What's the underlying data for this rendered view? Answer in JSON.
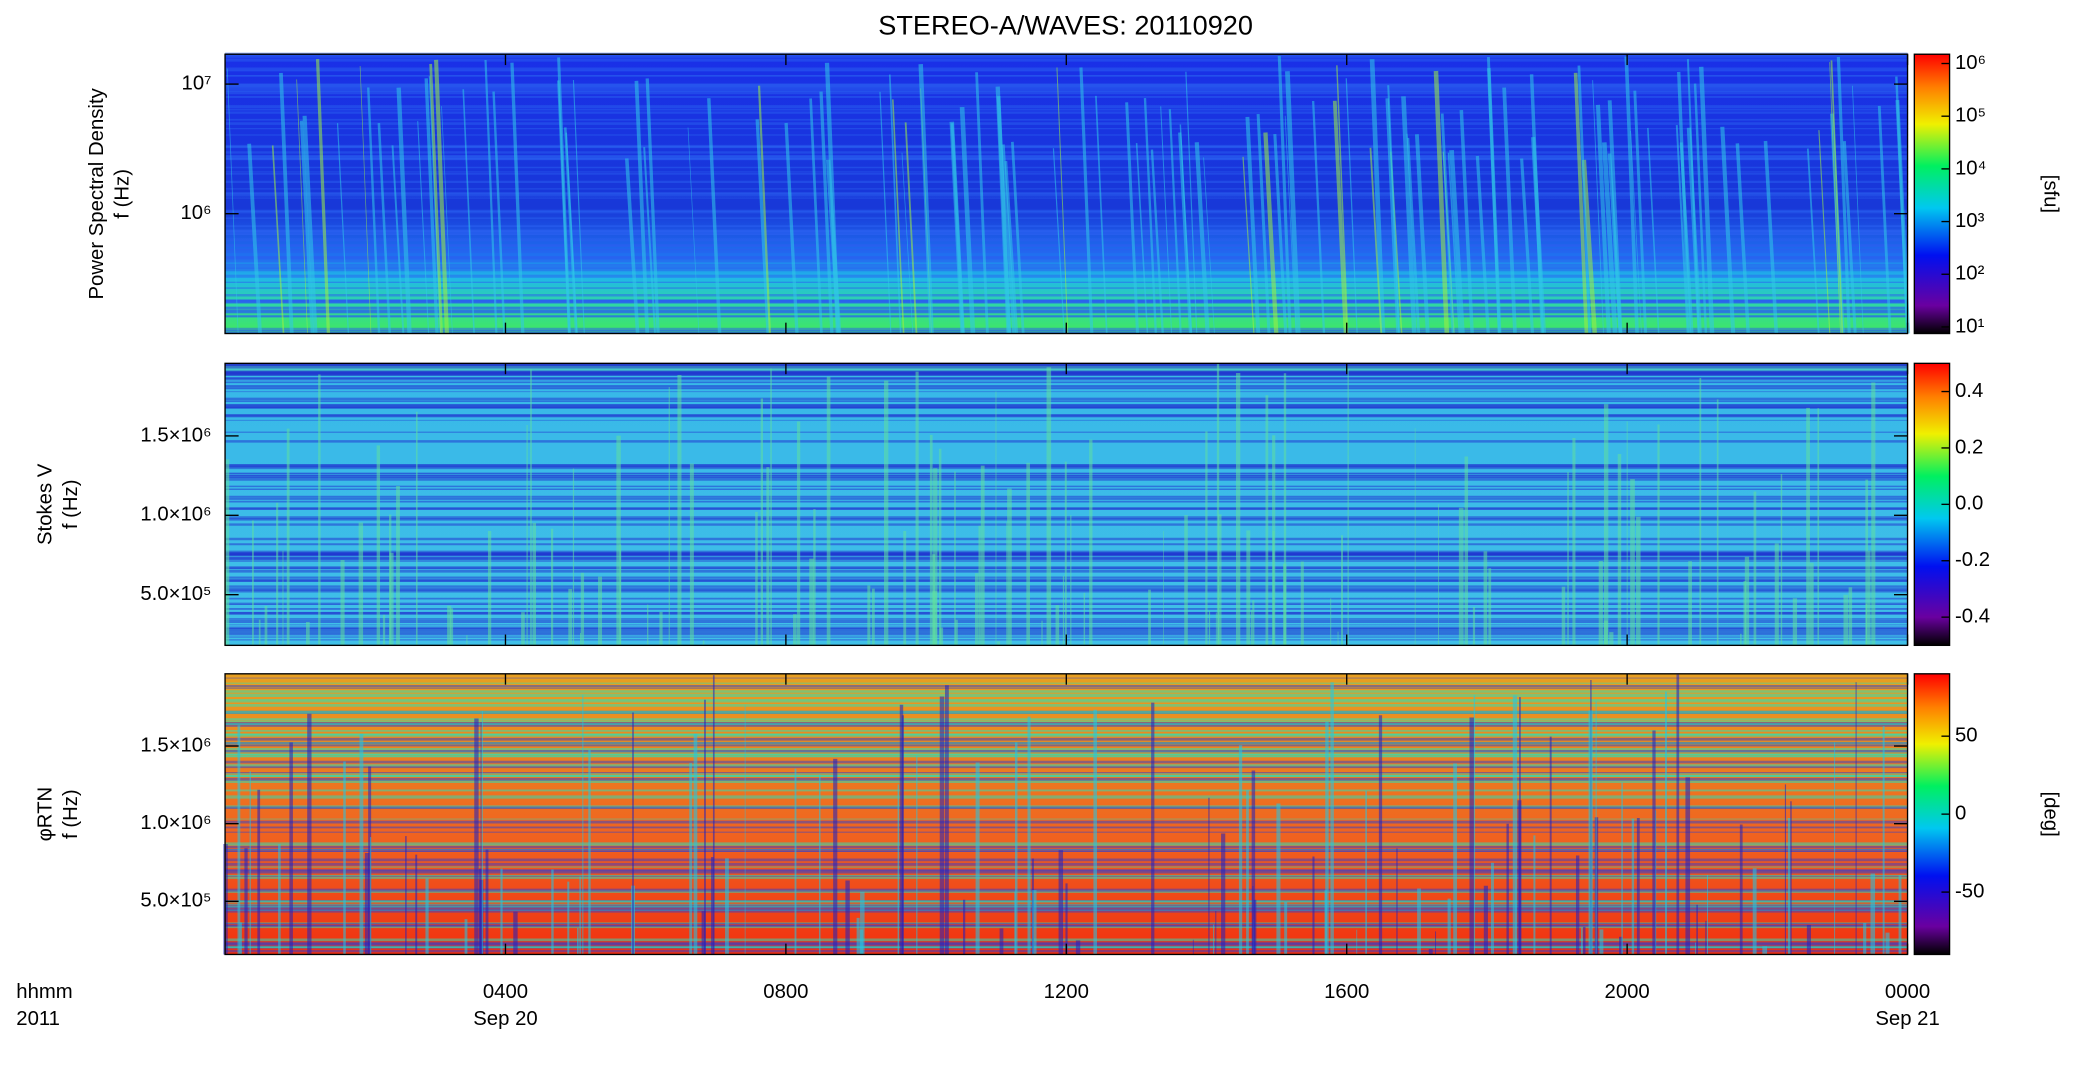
{
  "chart_data": [
    {
      "type": "heatmap",
      "title": "STEREO-A/WAVES: 20110920",
      "ylabel": [
        "Power Spectral Density",
        "f (Hz)"
      ],
      "yscale": "log",
      "ylim": [
        119000,
        17000000
      ],
      "yticks": [
        {
          "value": 1000000,
          "label": "10⁶"
        },
        {
          "value": 10000000,
          "label": "10⁷"
        }
      ],
      "colorbar": {
        "label": "[sfu]",
        "scale": "log",
        "clim": [
          7.5,
          1500000
        ],
        "ticks": [
          {
            "value": 10,
            "label": "10¹"
          },
          {
            "value": 100,
            "label": "10²"
          },
          {
            "value": 1000,
            "label": "10³"
          },
          {
            "value": 10000,
            "label": "10⁴"
          },
          {
            "value": 100000,
            "label": "10⁵"
          },
          {
            "value": 1000000,
            "label": "10⁶"
          }
        ]
      }
    },
    {
      "type": "heatmap",
      "ylabel": [
        "Stokes V",
        "f (Hz)"
      ],
      "yscale": "linear",
      "ylim": [
        181000,
        1957000
      ],
      "yticks": [
        {
          "value": 500000,
          "label": "5.0×10⁵"
        },
        {
          "value": 1000000,
          "label": "1.0×10⁶"
        },
        {
          "value": 1500000,
          "label": "1.5×10⁶"
        }
      ],
      "colorbar": {
        "scale": "linear",
        "clim": [
          -0.5,
          0.5
        ],
        "ticks": [
          -0.4,
          -0.2,
          {
            "value": 0,
            "label": "0.0"
          },
          0.2,
          0.4
        ]
      }
    },
    {
      "type": "heatmap",
      "ylabel": [
        "φRTN",
        "f (Hz)"
      ],
      "yscale": "linear",
      "ylim": [
        158000,
        1965000
      ],
      "yticks": [
        {
          "value": 500000,
          "label": "5.0×10⁵"
        },
        {
          "value": 1000000,
          "label": "1.0×10⁶"
        },
        {
          "value": 1500000,
          "label": "1.5×10⁶"
        }
      ],
      "colorbar": {
        "label": "[deg]",
        "scale": "linear",
        "clim": [
          -90,
          90
        ],
        "ticks": [
          -50,
          0,
          50
        ]
      },
      "xlabel": [
        "hhmm",
        "2011"
      ],
      "xlim": [
        0,
        24
      ],
      "xticks": [
        {
          "value": 4,
          "label": "0400"
        },
        {
          "value": 8,
          "label": "0800"
        },
        {
          "value": 12,
          "label": "1200"
        },
        {
          "value": 16,
          "label": "1600"
        },
        {
          "value": 20,
          "label": "2000"
        },
        {
          "value": 24,
          "label": "0000"
        }
      ],
      "xdates": [
        {
          "value": 4,
          "label": "Sep 20"
        },
        {
          "value": 24,
          "label": "Sep 21"
        }
      ]
    }
  ]
}
